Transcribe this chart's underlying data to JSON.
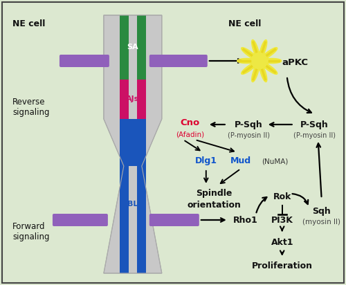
{
  "bg_color": "#dce8d0",
  "border_color": "#444444",
  "ne_cell_left": "NE cell",
  "ne_cell_right": "NE cell",
  "reverse_label": "Reverse\nsignaling",
  "forward_label": "Forward\nsignaling",
  "sa_label": "SA",
  "ajs_label": "AJs",
  "bl_label": "BL",
  "cell_body_color": "#cccccc",
  "green_color": "#2a8a40",
  "magenta_color": "#cc1065",
  "blue_color": "#1a55bb",
  "purple_color": "#9060bb",
  "apkc_star_color": "#f0e030",
  "cno_color": "#dd0030",
  "dlg_mud_color": "#1155cc",
  "arrow_color": "#111111",
  "text_color": "#111111"
}
